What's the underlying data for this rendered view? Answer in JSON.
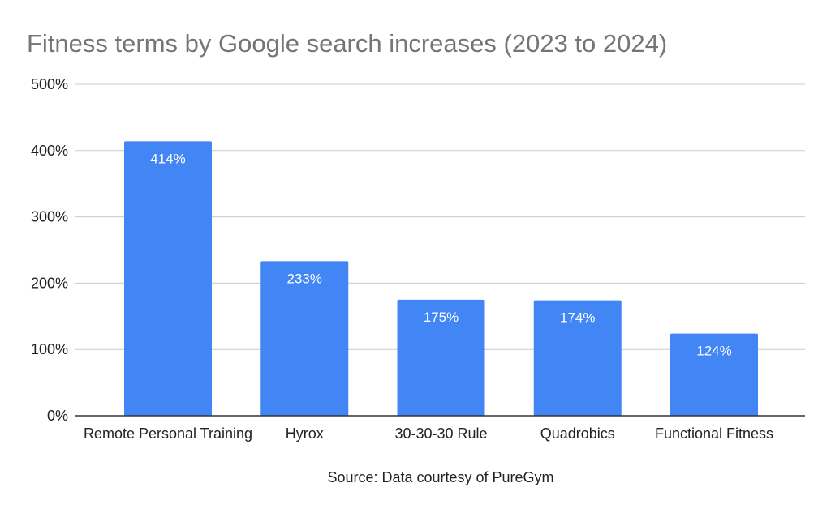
{
  "chart_data": {
    "type": "bar",
    "title": "Fitness terms by Google search increases (2023 to 2024)",
    "xlabel": "Source: Data courtesy of PureGym",
    "ylabel": "",
    "categories": [
      "Remote Personal Training",
      "Hyrox",
      "30-30-30 Rule",
      "Quadrobics",
      "Functional Fitness"
    ],
    "values": [
      414,
      233,
      175,
      174,
      124
    ],
    "data_labels": [
      "414%",
      "233%",
      "175%",
      "174%",
      "124%"
    ],
    "ylim": [
      0,
      500
    ],
    "y_ticks": [
      0,
      100,
      200,
      300,
      400,
      500
    ],
    "y_tick_labels": [
      "0%",
      "100%",
      "200%",
      "300%",
      "400%",
      "500%"
    ],
    "grid": true,
    "legend": "none",
    "bar_color": "#4285f4",
    "grid_color": "#cccccc",
    "axis_color": "#333333",
    "title_color": "#757575"
  }
}
